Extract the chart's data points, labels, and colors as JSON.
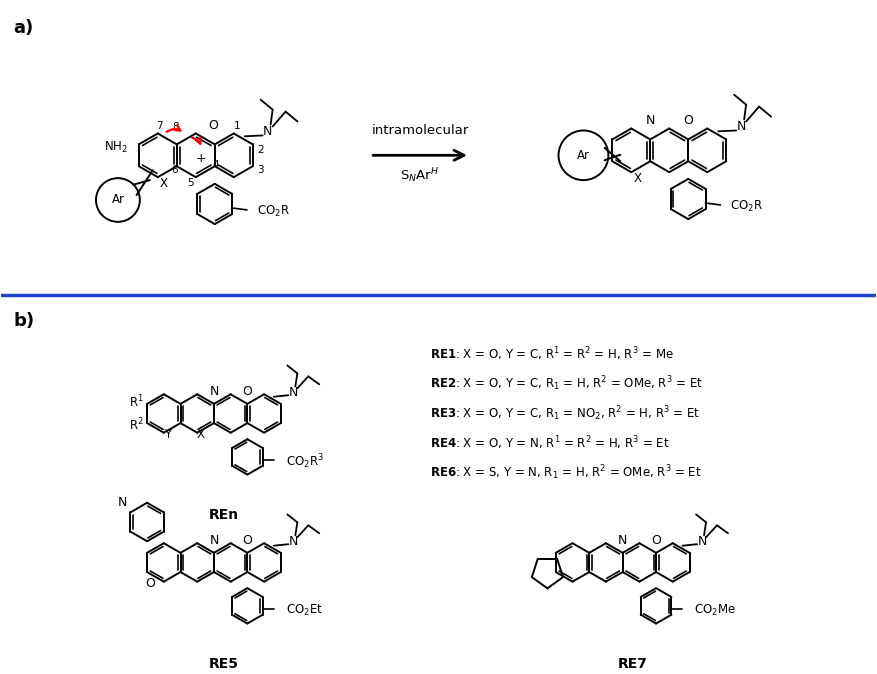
{
  "background_color": "#ffffff",
  "fig_width": 8.77,
  "fig_height": 6.74,
  "dpi": 100,
  "label_a": "a)",
  "label_b": "b)",
  "separator_color": "#2244cc",
  "separator_linewidth": 2.5,
  "reaction_label_intramolecular": "intramolecular",
  "reaction_label_snar": "S$_{N}$Ar$^{H}$"
}
